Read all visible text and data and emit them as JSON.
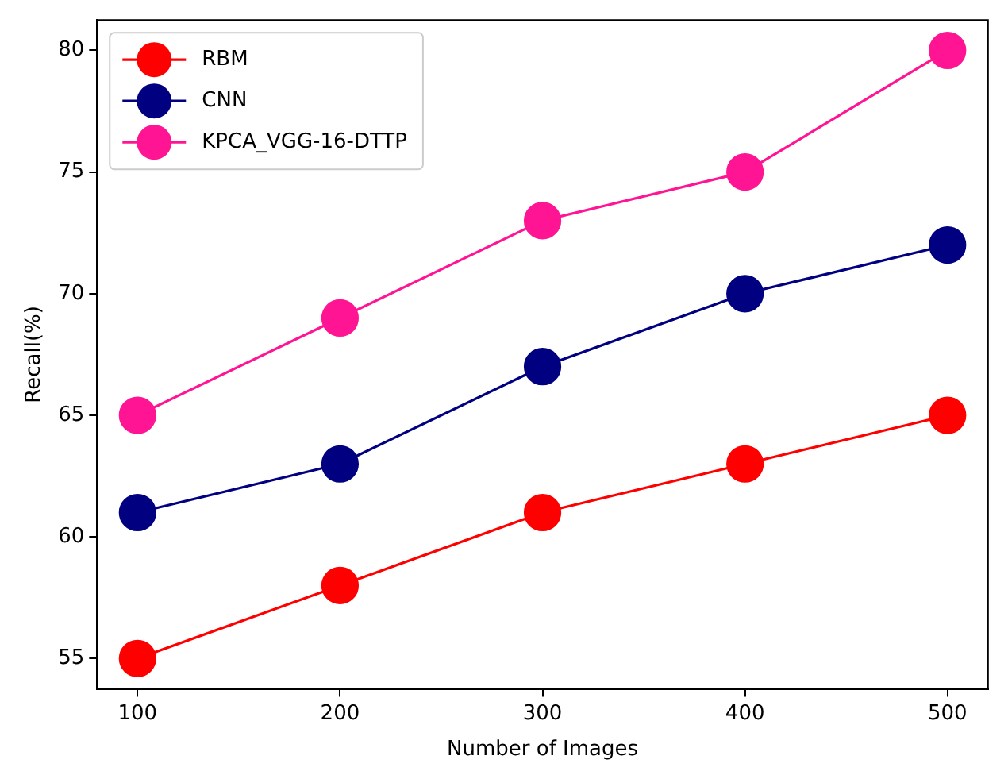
{
  "chart_data": {
    "type": "line",
    "xlabel": "Number of Images",
    "ylabel": "Recall(%)",
    "x": [
      100,
      200,
      300,
      400,
      500
    ],
    "series": [
      {
        "name": "RBM",
        "color": "#ff0000",
        "values": [
          55,
          58,
          61,
          63,
          65
        ]
      },
      {
        "name": "CNN",
        "color": "#000080",
        "values": [
          61,
          63,
          67,
          70,
          72
        ]
      },
      {
        "name": "KPCA_VGG-16-DTTP",
        "color": "#ff1493",
        "values": [
          65,
          69,
          73,
          75,
          80
        ]
      }
    ],
    "xlim": [
      80,
      520
    ],
    "xticks": [
      100,
      200,
      300,
      400,
      500
    ],
    "ylim": [
      53.75,
      81.25
    ],
    "yticks": [
      55,
      60,
      65,
      70,
      75,
      80
    ],
    "marker": "circle",
    "line_style": "solid",
    "legend": "top left",
    "grid": false
  }
}
